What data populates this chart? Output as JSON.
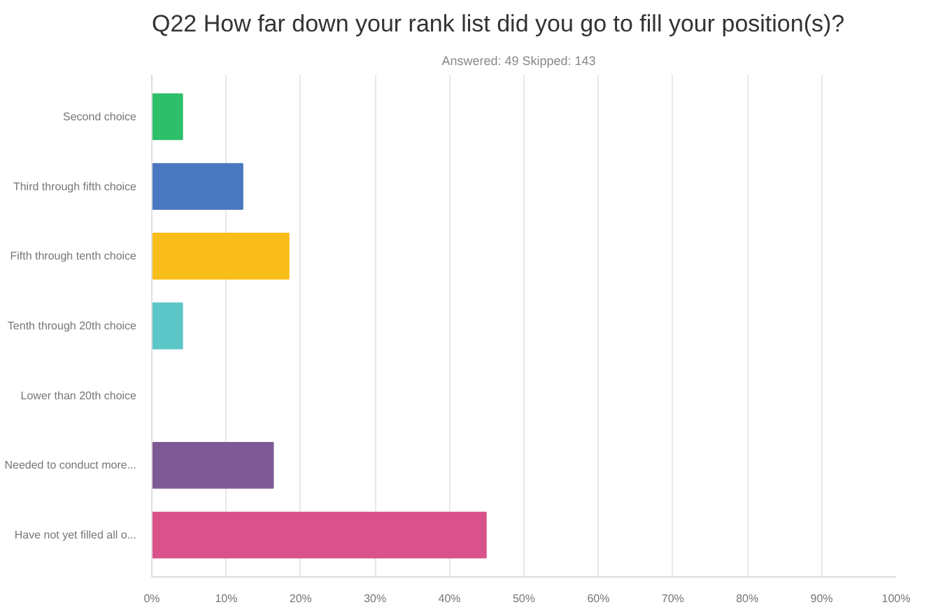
{
  "chart_data": {
    "type": "bar",
    "orientation": "horizontal",
    "title": "Q22 How far down your rank list did you go to fill your position(s)?",
    "subtitle": "Answered: 49    Skipped: 143",
    "categories": [
      "Second choice",
      "Third through fifth choice",
      "Fifth through tenth choice",
      "Tenth through 20th choice",
      "Lower than 20th choice",
      "Needed to conduct more...",
      "Have not yet filled all o..."
    ],
    "values": [
      4.1,
      12.2,
      18.4,
      4.1,
      0,
      16.3,
      44.9
    ],
    "colors": [
      "#2dbf6a",
      "#4a78c0",
      "#f9bd1a",
      "#5cc5c8",
      "#ffffff",
      "#7d5a95",
      "#d9538a"
    ],
    "xlim": [
      0,
      100
    ],
    "xticks": [
      {
        "value": 0,
        "label": "0%"
      },
      {
        "value": 10,
        "label": "10%"
      },
      {
        "value": 20,
        "label": "20%"
      },
      {
        "value": 30,
        "label": "30%"
      },
      {
        "value": 40,
        "label": "40%"
      },
      {
        "value": 50,
        "label": "50%"
      },
      {
        "value": 60,
        "label": "60%"
      },
      {
        "value": 70,
        "label": "70%"
      },
      {
        "value": 80,
        "label": "80%"
      },
      {
        "value": 90,
        "label": "90%"
      },
      {
        "value": 100,
        "label": "100%"
      }
    ],
    "grid": "x"
  }
}
